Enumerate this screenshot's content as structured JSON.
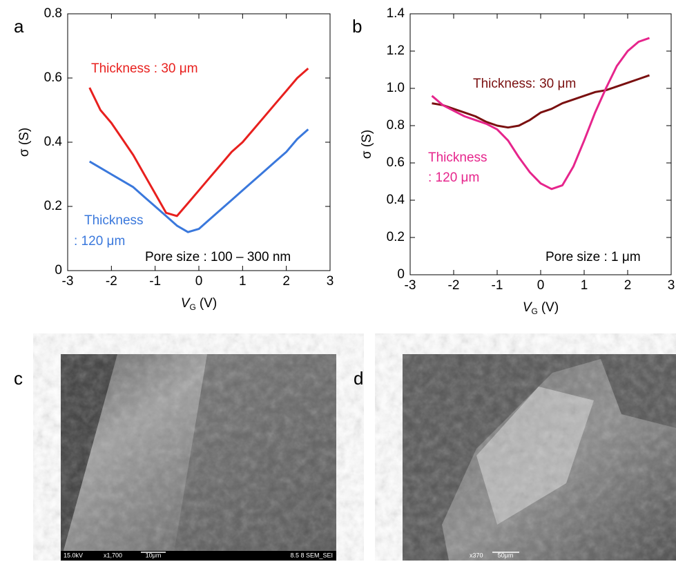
{
  "chart_data": [
    {
      "type": "line",
      "panel": "a",
      "xlabel": [
        "V",
        "G",
        "(V)"
      ],
      "ylabel": "σ (S)",
      "x": [
        -2.5,
        -2.25,
        -2,
        -1.75,
        -1.5,
        -1.25,
        -1,
        -0.75,
        -0.5,
        -0.25,
        0,
        0.25,
        0.5,
        0.75,
        1,
        1.25,
        1.5,
        1.75,
        2,
        2.25,
        2.5
      ],
      "series": [
        {
          "color": "#e8201e",
          "values": [
            0.57,
            0.5,
            0.46,
            0.41,
            0.36,
            0.3,
            0.24,
            0.18,
            0.17,
            0.21,
            0.25,
            0.29,
            0.33,
            0.37,
            0.4,
            0.44,
            0.48,
            0.52,
            0.56,
            0.6,
            0.63
          ]
        },
        {
          "color": "#3a78dc",
          "values": [
            0.34,
            0.32,
            0.3,
            0.28,
            0.26,
            0.23,
            0.2,
            0.17,
            0.14,
            0.12,
            0.13,
            0.16,
            0.19,
            0.22,
            0.25,
            0.28,
            0.31,
            0.34,
            0.37,
            0.41,
            0.44
          ]
        }
      ],
      "annotations": [
        {
          "text": "Thickness : 30 μm",
          "color": "#e8201e"
        },
        {
          "text": "Thickness",
          "color": "#3a78dc"
        },
        {
          "text": ": 120 μm",
          "color": "#3a78dc"
        },
        {
          "text": "Pore size : 100 – 300 nm",
          "color": "#000000"
        }
      ],
      "xlim": [
        -3,
        3
      ],
      "xticks": [
        -3,
        -2,
        -1,
        0,
        1,
        2,
        3
      ],
      "ylim": [
        0,
        0.8
      ],
      "yticks": [
        0,
        0.2,
        0.4,
        0.6,
        0.8
      ]
    },
    {
      "type": "line",
      "panel": "b",
      "xlabel": [
        "V",
        "G",
        "(V)"
      ],
      "ylabel": "σ (S)",
      "x": [
        -2.5,
        -2.25,
        -2,
        -1.75,
        -1.5,
        -1.25,
        -1,
        -0.75,
        -0.5,
        -0.25,
        0,
        0.25,
        0.5,
        0.75,
        1,
        1.25,
        1.5,
        1.75,
        2,
        2.25,
        2.5
      ],
      "series": [
        {
          "color": "#7a1010",
          "values": [
            0.92,
            0.91,
            0.89,
            0.87,
            0.85,
            0.82,
            0.8,
            0.79,
            0.8,
            0.83,
            0.87,
            0.89,
            0.92,
            0.94,
            0.96,
            0.98,
            0.99,
            1.01,
            1.03,
            1.05,
            1.07
          ]
        },
        {
          "color": "#e6258c",
          "values": [
            0.96,
            0.91,
            0.88,
            0.85,
            0.83,
            0.81,
            0.78,
            0.72,
            0.63,
            0.55,
            0.49,
            0.46,
            0.48,
            0.58,
            0.72,
            0.87,
            1,
            1.12,
            1.2,
            1.25,
            1.27
          ]
        }
      ],
      "annotations": [
        {
          "text": "Thickness: 30 μm",
          "color": "#7a1010"
        },
        {
          "text": "Thickness",
          "color": "#e6258c"
        },
        {
          "text": ": 120 μm",
          "color": "#e6258c"
        },
        {
          "text": "Pore size : 1 μm",
          "color": "#000000"
        }
      ],
      "xlim": [
        -3,
        3
      ],
      "xticks": [
        -3,
        -2,
        -1,
        0,
        1,
        2,
        3
      ],
      "ylim": [
        0,
        1.4
      ],
      "yticks": [
        0,
        0.2,
        0.4,
        0.6,
        0.8,
        {
          "value": 1,
          "label": "1.0"
        },
        1.2,
        1.4
      ]
    }
  ],
  "images": [
    {
      "panel": "c",
      "labels": [
        "15.0kV",
        "x1,700",
        "10μm",
        "8.5 8 SEM_SEI"
      ]
    },
    {
      "panel": "d",
      "labels": [
        "x370",
        "50μm"
      ]
    }
  ]
}
